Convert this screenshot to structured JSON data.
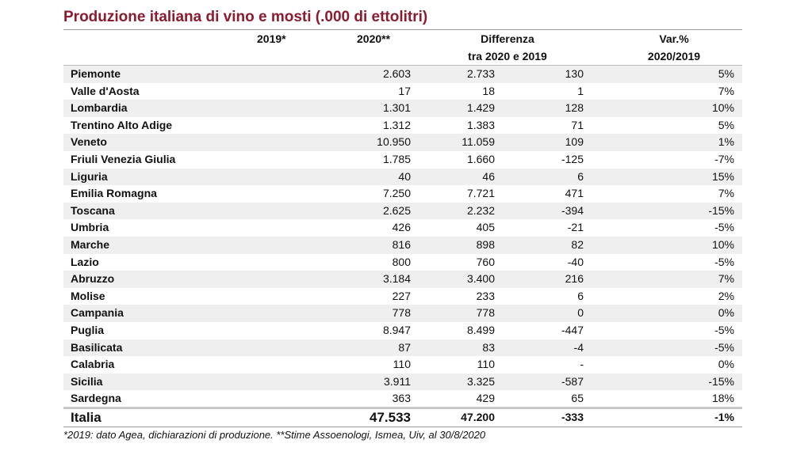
{
  "chart_data": {
    "type": "table",
    "title": "Produzione italiana di vino e mosti (.000 di ettolitri)",
    "columns": {
      "v2019": "2019*",
      "v2020": "2020**",
      "diff_line1": "Differenza",
      "diff_line2": "tra 2020 e 2019",
      "var_line1": "Var.%",
      "var_line2": "2020/2019"
    },
    "rows": [
      {
        "region": "Piemonte",
        "v2019": "2.603",
        "v2020": "2.733",
        "diff": "130",
        "var": "5%"
      },
      {
        "region": "Valle d'Aosta",
        "v2019": "17",
        "v2020": "18",
        "diff": "1",
        "var": "7%"
      },
      {
        "region": "Lombardia",
        "v2019": "1.301",
        "v2020": "1.429",
        "diff": "128",
        "var": "10%"
      },
      {
        "region": "Trentino Alto Adige",
        "v2019": "1.312",
        "v2020": "1.383",
        "diff": "71",
        "var": "5%"
      },
      {
        "region": "Veneto",
        "v2019": "10.950",
        "v2020": "11.059",
        "diff": "109",
        "var": "1%"
      },
      {
        "region": "Friuli Venezia Giulia",
        "v2019": "1.785",
        "v2020": "1.660",
        "diff": "-125",
        "var": "-7%"
      },
      {
        "region": "Liguria",
        "v2019": "40",
        "v2020": "46",
        "diff": "6",
        "var": "15%"
      },
      {
        "region": "Emilia Romagna",
        "v2019": "7.250",
        "v2020": "7.721",
        "diff": "471",
        "var": "7%"
      },
      {
        "region": "Toscana",
        "v2019": "2.625",
        "v2020": "2.232",
        "diff": "-394",
        "var": "-15%"
      },
      {
        "region": "Umbria",
        "v2019": "426",
        "v2020": "405",
        "diff": "-21",
        "var": "-5%"
      },
      {
        "region": "Marche",
        "v2019": "816",
        "v2020": "898",
        "diff": "82",
        "var": "10%"
      },
      {
        "region": "Lazio",
        "v2019": "800",
        "v2020": "760",
        "diff": "-40",
        "var": "-5%"
      },
      {
        "region": "Abruzzo",
        "v2019": "3.184",
        "v2020": "3.400",
        "diff": "216",
        "var": "7%"
      },
      {
        "region": "Molise",
        "v2019": "227",
        "v2020": "233",
        "diff": "6",
        "var": "2%"
      },
      {
        "region": "Campania",
        "v2019": "778",
        "v2020": "778",
        "diff": "0",
        "var": "0%"
      },
      {
        "region": "Puglia",
        "v2019": "8.947",
        "v2020": "8.499",
        "diff": "-447",
        "var": "-5%"
      },
      {
        "region": "Basilicata",
        "v2019": "87",
        "v2020": "83",
        "diff": "-4",
        "var": "-5%"
      },
      {
        "region": "Calabria",
        "v2019": "110",
        "v2020": "110",
        "diff": "-",
        "var": "0%"
      },
      {
        "region": "Sicilia",
        "v2019": "3.911",
        "v2020": "3.325",
        "diff": "-587",
        "var": "-15%"
      },
      {
        "region": "Sardegna",
        "v2019": "363",
        "v2020": "429",
        "diff": "65",
        "var": "18%"
      }
    ],
    "total": {
      "region": "Italia",
      "v2019": "47.533",
      "v2020": "47.200",
      "diff": "-333",
      "var": "-1%"
    },
    "footnote": "*2019: dato Agea, dichiarazioni di produzione. **Stime Assoenologi, Ismea, Uiv, al 30/8/2020"
  },
  "colors": {
    "title": "#8b1b2e",
    "row_shade": "#efefef"
  }
}
